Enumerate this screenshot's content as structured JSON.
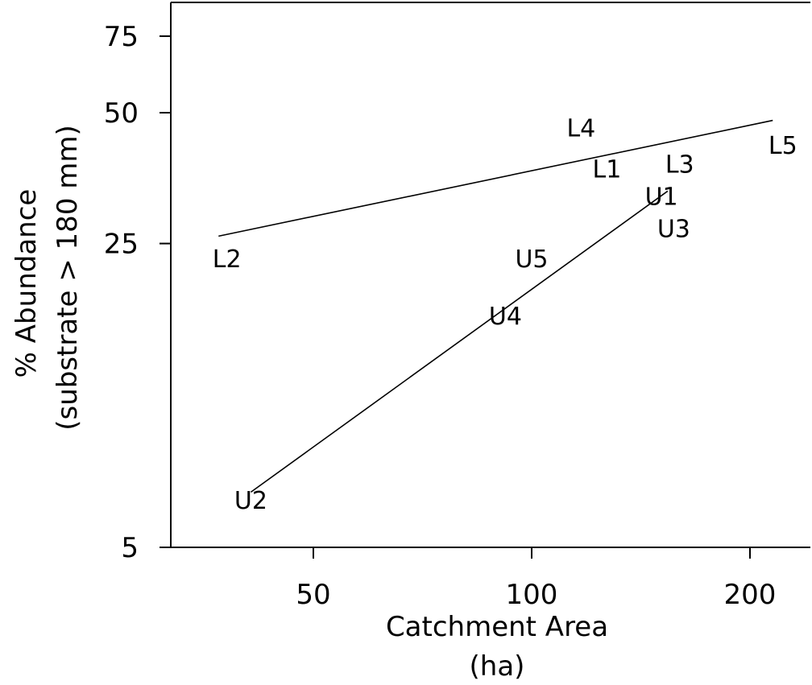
{
  "chart_data": {
    "type": "scatter",
    "title": "",
    "xlabel": "Catchment Area",
    "xlabel_unit": "(ha)",
    "ylabel": "% Abundance",
    "ylabel_sub": "(substrate > 180 mm)",
    "x_scale": "log",
    "y_scale": "log",
    "xlim": [
      36,
      214
    ],
    "ylim": [
      5,
      95
    ],
    "x_ticks": [
      50,
      100,
      200
    ],
    "x_tick_labels": [
      "50",
      "100",
      "200"
    ],
    "y_ticks": [
      5,
      25,
      50,
      75
    ],
    "y_tick_labels": [
      "5",
      "25",
      "50",
      "75"
    ],
    "grid": false,
    "legend": "none",
    "points": [
      {
        "label": "L1",
        "x": 127,
        "y": 37
      },
      {
        "label": "L2",
        "x": 38,
        "y": 23
      },
      {
        "label": "L3",
        "x": 160,
        "y": 38
      },
      {
        "label": "L4",
        "x": 117,
        "y": 46
      },
      {
        "label": "L5",
        "x": 222,
        "y": 42
      },
      {
        "label": "U1",
        "x": 151,
        "y": 32
      },
      {
        "label": "U2",
        "x": 41,
        "y": 6.4
      },
      {
        "label": "U3",
        "x": 157,
        "y": 27
      },
      {
        "label": "U4",
        "x": 92,
        "y": 17
      },
      {
        "label": "U5",
        "x": 100,
        "y": 23
      }
    ],
    "fit_lines": [
      {
        "x": [
          37,
          215
        ],
        "y": [
          26,
          48
        ]
      },
      {
        "x": [
          41,
          154
        ],
        "y": [
          6.7,
          33
        ]
      }
    ]
  }
}
